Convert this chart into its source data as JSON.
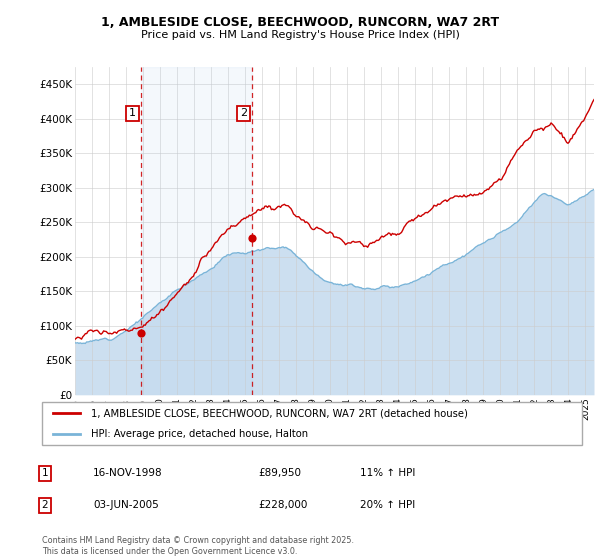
{
  "title_line1": "1, AMBLESIDE CLOSE, BEECHWOOD, RUNCORN, WA7 2RT",
  "title_line2": "Price paid vs. HM Land Registry's House Price Index (HPI)",
  "ylabel_ticks": [
    "£0",
    "£50K",
    "£100K",
    "£150K",
    "£200K",
    "£250K",
    "£300K",
    "£350K",
    "£400K",
    "£450K"
  ],
  "ytick_values": [
    0,
    50000,
    100000,
    150000,
    200000,
    250000,
    300000,
    350000,
    400000,
    450000
  ],
  "xmin": 1995,
  "xmax": 2025.5,
  "ymin": 0,
  "ymax": 475000,
  "legend_line1": "1, AMBLESIDE CLOSE, BEECHWOOD, RUNCORN, WA7 2RT (detached house)",
  "legend_line2": "HPI: Average price, detached house, Halton",
  "sale1_date": "16-NOV-1998",
  "sale1_price": "£89,950",
  "sale1_hpi": "11% ↑ HPI",
  "sale1_year": 1998.88,
  "sale1_value": 89950,
  "sale2_date": "03-JUN-2005",
  "sale2_price": "£228,000",
  "sale2_hpi": "20% ↑ HPI",
  "sale2_year": 2005.42,
  "sale2_value": 228000,
  "line_color_red": "#cc0000",
  "line_color_blue": "#7ab4d8",
  "vline_color": "#cc0000",
  "dot_color_red": "#cc0000",
  "shade_color": "#ccdff0",
  "background_color": "#ffffff",
  "grid_color": "#cccccc",
  "footer_text": "Contains HM Land Registry data © Crown copyright and database right 2025.\nThis data is licensed under the Open Government Licence v3.0."
}
